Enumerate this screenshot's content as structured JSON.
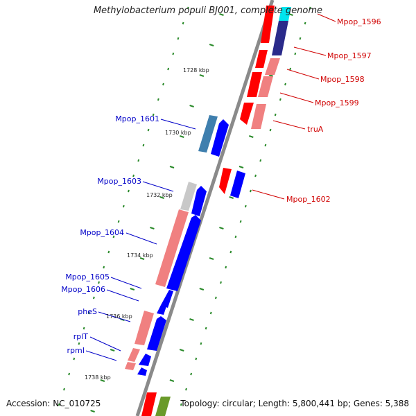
{
  "title": "Methylobacterium populi BJ001, complete genome",
  "footer": {
    "accession": "Accession: NC_010725",
    "topology": "Topology: circular; Length: 5,800,441 bp; Genes: 5,388"
  },
  "colors": {
    "backbone": "#8a8a8a",
    "forward_label": "#d00000",
    "reverse_label": "#0000c8",
    "tick": "#2a8a2a",
    "cds_red": "#ff0000",
    "cds_pink": "#f08080",
    "cds_blue": "#0000ff",
    "cds_steel": "#3f7fae",
    "cds_gray": "#c8c8c8",
    "cds_cyan": "#00e5ee",
    "cds_navy": "#2a2a8a",
    "cds_olive": "#6a9a2a"
  },
  "scale_labels": [
    "1728 kbp",
    "1730 kbp",
    "1732 kbp",
    "1734 kbp",
    "1736 kbp",
    "1738 kbp"
  ],
  "forward_genes": [
    "Mpop_1596",
    "Mpop_1597",
    "Mpop_1598",
    "Mpop_1599",
    "truA",
    "Mpop_1602"
  ],
  "reverse_genes": [
    "Mpop_1601",
    "Mpop_1603",
    "Mpop_1604",
    "Mpop_1605",
    "Mpop_1606",
    "pheS",
    "rplT",
    "rpmI"
  ]
}
